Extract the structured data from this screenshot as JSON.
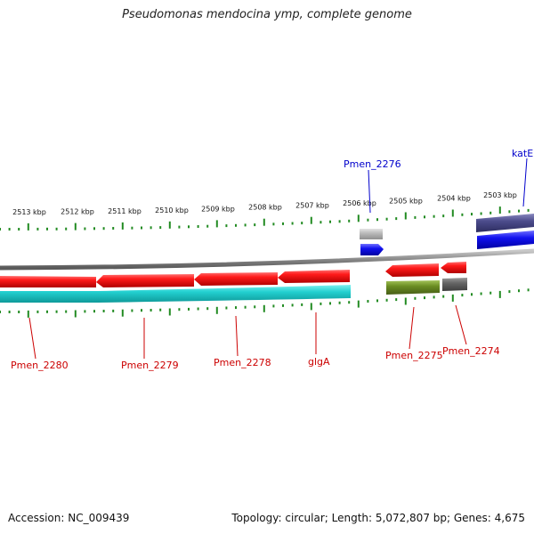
{
  "title": "Pseudomonas mendocina ymp, complete genome",
  "accession_text": "Accession: NC_009439",
  "topology_text": "Topology: circular; Length: 5,072,807 bp; Genes: 4,675",
  "colors": {
    "forward_cds": "#ee1111",
    "reverse_cds": "#ee1111",
    "forward_feature": "#1111ee",
    "gene_track": "#22cccc",
    "olive_feature": "#6b8e23",
    "gray_feature": "#666666",
    "light_gray_feature": "#bbbbbb",
    "navy_feature": "#4c4c8c",
    "tick": "#228b22",
    "backbone": "#888888",
    "label_red": "#cc0000",
    "label_blue": "#0000cc"
  },
  "chart_data": {
    "type": "genome-map",
    "scale_labels": [
      "2513 kbp",
      "2512 kbp",
      "2511 kbp",
      "2510 kbp",
      "2509 kbp",
      "2508 kbp",
      "2507 kbp",
      "2506 kbp",
      "2505 kbp",
      "2504 kbp",
      "2503 kbp"
    ],
    "gene_labels": [
      {
        "name": "katE",
        "color": "label_blue"
      },
      {
        "name": "Pmen_2276",
        "color": "label_blue"
      },
      {
        "name": "Pmen_2280",
        "color": "label_red"
      },
      {
        "name": "Pmen_2279",
        "color": "label_red"
      },
      {
        "name": "Pmen_2278",
        "color": "label_red"
      },
      {
        "name": "glgA",
        "color": "label_red"
      },
      {
        "name": "Pmen_2275",
        "color": "label_red"
      },
      {
        "name": "Pmen_2274",
        "color": "label_red"
      }
    ]
  }
}
